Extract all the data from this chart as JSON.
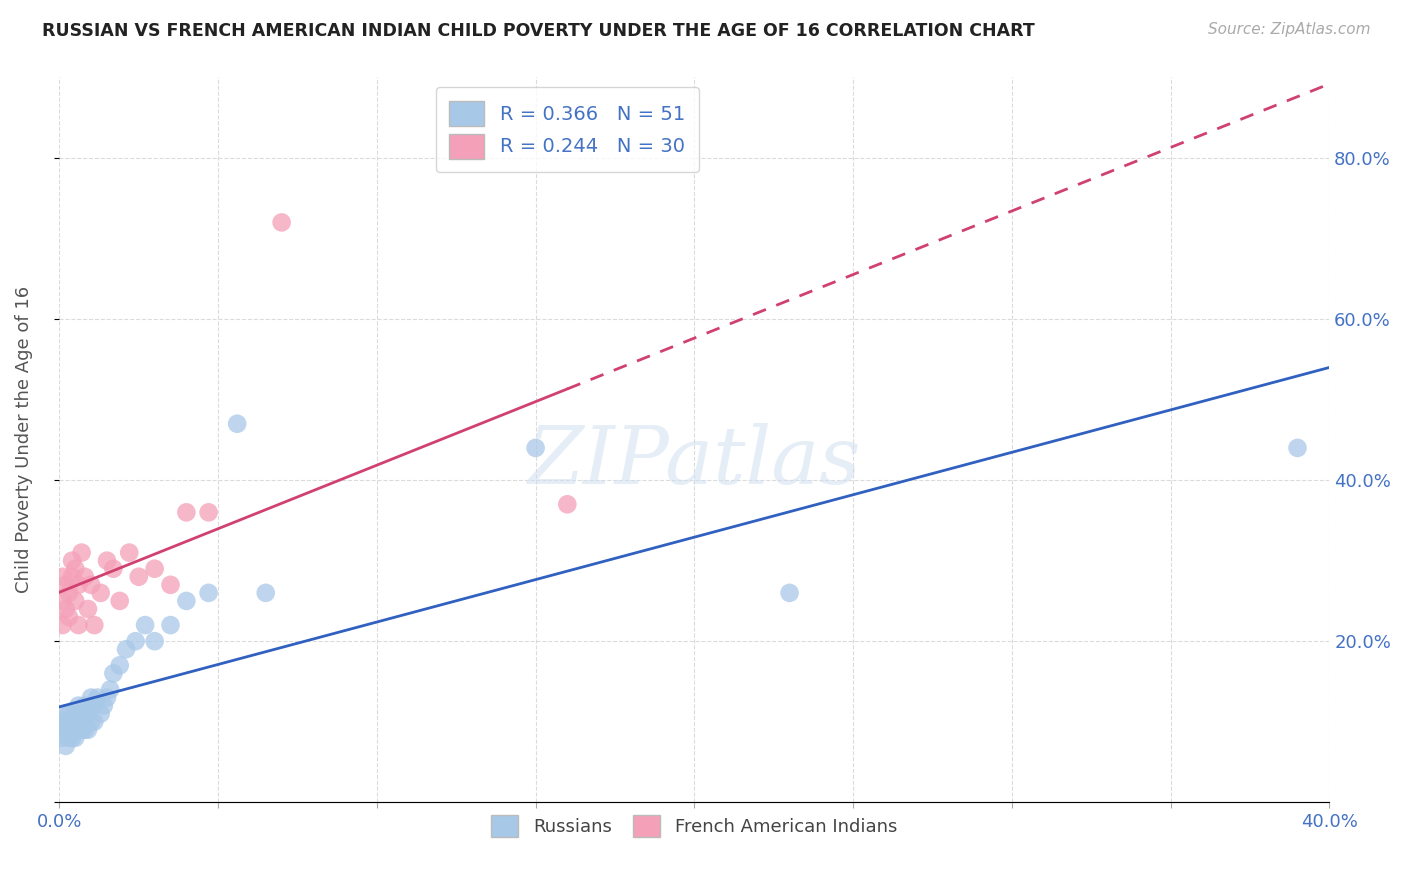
{
  "title": "RUSSIAN VS FRENCH AMERICAN INDIAN CHILD POVERTY UNDER THE AGE OF 16 CORRELATION CHART",
  "source": "Source: ZipAtlas.com",
  "ylabel": "Child Poverty Under the Age of 16",
  "yticks": [
    "",
    "20.0%",
    "40.0%",
    "60.0%",
    "80.0%"
  ],
  "ytick_vals": [
    0.0,
    0.2,
    0.4,
    0.6,
    0.8
  ],
  "russian_color": "#a8c8e8",
  "french_color": "#f4a0b8",
  "trend_russian_color": "#3060c0",
  "trend_french_color": "#d04070",
  "russian_x": [
    0.001,
    0.001,
    0.001,
    0.002,
    0.002,
    0.002,
    0.002,
    0.003,
    0.003,
    0.003,
    0.003,
    0.004,
    0.004,
    0.004,
    0.005,
    0.005,
    0.005,
    0.006,
    0.006,
    0.006,
    0.007,
    0.007,
    0.007,
    0.008,
    0.008,
    0.008,
    0.009,
    0.009,
    0.01,
    0.01,
    0.011,
    0.011,
    0.012,
    0.013,
    0.014,
    0.015,
    0.016,
    0.017,
    0.019,
    0.021,
    0.024,
    0.027,
    0.03,
    0.035,
    0.04,
    0.047,
    0.056,
    0.065,
    0.15,
    0.23,
    0.39
  ],
  "russian_y": [
    0.08,
    0.09,
    0.1,
    0.07,
    0.09,
    0.1,
    0.11,
    0.08,
    0.09,
    0.1,
    0.11,
    0.08,
    0.09,
    0.1,
    0.08,
    0.09,
    0.11,
    0.09,
    0.1,
    0.12,
    0.09,
    0.1,
    0.11,
    0.09,
    0.1,
    0.12,
    0.09,
    0.11,
    0.1,
    0.13,
    0.1,
    0.12,
    0.13,
    0.11,
    0.12,
    0.13,
    0.14,
    0.16,
    0.17,
    0.19,
    0.2,
    0.22,
    0.2,
    0.22,
    0.25,
    0.26,
    0.47,
    0.26,
    0.44,
    0.26,
    0.44
  ],
  "french_x": [
    0.001,
    0.001,
    0.001,
    0.002,
    0.002,
    0.003,
    0.003,
    0.004,
    0.004,
    0.005,
    0.005,
    0.006,
    0.006,
    0.007,
    0.008,
    0.009,
    0.01,
    0.011,
    0.013,
    0.015,
    0.017,
    0.019,
    0.022,
    0.025,
    0.03,
    0.035,
    0.04,
    0.047,
    0.07,
    0.16
  ],
  "french_y": [
    0.22,
    0.25,
    0.28,
    0.24,
    0.27,
    0.23,
    0.26,
    0.28,
    0.3,
    0.25,
    0.29,
    0.22,
    0.27,
    0.31,
    0.28,
    0.24,
    0.27,
    0.22,
    0.26,
    0.3,
    0.29,
    0.25,
    0.31,
    0.28,
    0.29,
    0.27,
    0.36,
    0.36,
    0.72,
    0.37
  ],
  "xlim": [
    0.0,
    0.4
  ],
  "ylim": [
    0.0,
    0.9
  ],
  "background_color": "#ffffff"
}
